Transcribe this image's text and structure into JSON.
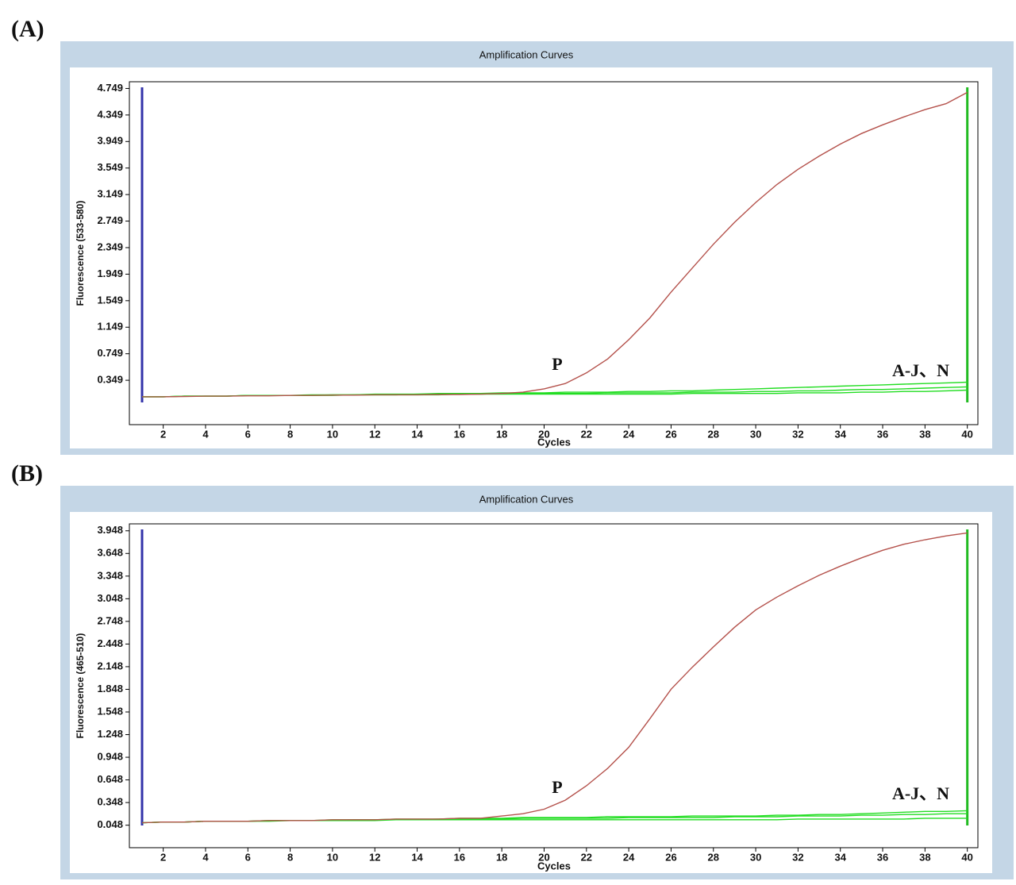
{
  "chart_data": [
    {
      "type": "line",
      "label": "(A)",
      "title": "Amplification Curves",
      "xlabel": "Cycles",
      "ylabel": "Fluorescence (533-580)",
      "x": [
        1,
        2,
        3,
        4,
        5,
        6,
        7,
        8,
        9,
        10,
        11,
        12,
        13,
        14,
        15,
        16,
        17,
        18,
        19,
        20,
        21,
        22,
        23,
        24,
        25,
        26,
        27,
        28,
        29,
        30,
        31,
        32,
        33,
        34,
        35,
        36,
        37,
        38,
        39,
        40
      ],
      "series": [
        {
          "name": "P",
          "color": "#b4514b",
          "values": [
            0.1,
            0.1,
            0.105,
            0.11,
            0.11,
            0.115,
            0.115,
            0.12,
            0.12,
            0.125,
            0.125,
            0.13,
            0.13,
            0.13,
            0.135,
            0.135,
            0.14,
            0.15,
            0.17,
            0.22,
            0.3,
            0.46,
            0.67,
            0.96,
            1.29,
            1.68,
            2.04,
            2.4,
            2.73,
            3.03,
            3.3,
            3.53,
            3.73,
            3.91,
            4.07,
            4.2,
            4.32,
            4.43,
            4.52,
            4.69
          ]
        },
        {
          "name": "A-J、N",
          "color": "#22dd22",
          "values": [
            0.1,
            0.1,
            0.11,
            0.11,
            0.11,
            0.12,
            0.12,
            0.12,
            0.13,
            0.13,
            0.13,
            0.14,
            0.14,
            0.14,
            0.15,
            0.15,
            0.15,
            0.16,
            0.16,
            0.16,
            0.17,
            0.17,
            0.17,
            0.18,
            0.18,
            0.19,
            0.19,
            0.2,
            0.21,
            0.22,
            0.23,
            0.24,
            0.25,
            0.26,
            0.27,
            0.28,
            0.29,
            0.3,
            0.31,
            0.32
          ]
        },
        {
          "color": "#22dd22",
          "values": [
            0.1,
            0.1,
            0.11,
            0.11,
            0.11,
            0.12,
            0.12,
            0.12,
            0.12,
            0.13,
            0.13,
            0.13,
            0.13,
            0.14,
            0.14,
            0.14,
            0.14,
            0.15,
            0.15,
            0.15,
            0.15,
            0.15,
            0.16,
            0.16,
            0.16,
            0.16,
            0.17,
            0.17,
            0.17,
            0.18,
            0.18,
            0.19,
            0.19,
            0.2,
            0.21,
            0.21,
            0.22,
            0.23,
            0.24,
            0.25
          ]
        },
        {
          "color": "#22dd22",
          "values": [
            0.1,
            0.1,
            0.11,
            0.11,
            0.11,
            0.12,
            0.12,
            0.12,
            0.12,
            0.12,
            0.13,
            0.13,
            0.13,
            0.13,
            0.13,
            0.14,
            0.14,
            0.14,
            0.14,
            0.14,
            0.14,
            0.14,
            0.14,
            0.14,
            0.14,
            0.14,
            0.15,
            0.15,
            0.15,
            0.15,
            0.15,
            0.16,
            0.16,
            0.16,
            0.17,
            0.17,
            0.18,
            0.18,
            0.19,
            0.2
          ]
        }
      ],
      "xlim": [
        0.4,
        40.5
      ],
      "xticks": [
        2,
        4,
        6,
        8,
        10,
        12,
        14,
        16,
        18,
        20,
        22,
        24,
        26,
        28,
        30,
        32,
        34,
        36,
        38,
        40
      ],
      "ylim": [
        -0.32,
        4.85
      ],
      "yticks": [
        0.349,
        0.749,
        1.149,
        1.549,
        1.949,
        2.349,
        2.749,
        3.149,
        3.549,
        3.949,
        4.349,
        4.749
      ]
    },
    {
      "type": "line",
      "label": "(B)",
      "title": "Amplification Curves",
      "xlabel": "Cycles",
      "ylabel": "Fluorescence (465-510)",
      "x": [
        1,
        2,
        3,
        4,
        5,
        6,
        7,
        8,
        9,
        10,
        11,
        12,
        13,
        14,
        15,
        16,
        17,
        18,
        19,
        20,
        21,
        22,
        23,
        24,
        25,
        26,
        27,
        28,
        29,
        30,
        31,
        32,
        33,
        34,
        35,
        36,
        37,
        38,
        39,
        40
      ],
      "series": [
        {
          "name": "P",
          "color": "#b4514b",
          "values": [
            0.08,
            0.09,
            0.09,
            0.1,
            0.1,
            0.1,
            0.11,
            0.11,
            0.11,
            0.12,
            0.12,
            0.12,
            0.13,
            0.13,
            0.13,
            0.14,
            0.14,
            0.17,
            0.2,
            0.26,
            0.38,
            0.57,
            0.8,
            1.08,
            1.46,
            1.85,
            2.14,
            2.41,
            2.67,
            2.9,
            3.07,
            3.22,
            3.36,
            3.48,
            3.59,
            3.69,
            3.77,
            3.83,
            3.88,
            3.92
          ]
        },
        {
          "name": "A-J、N",
          "color": "#22dd22",
          "values": [
            0.08,
            0.09,
            0.09,
            0.1,
            0.1,
            0.1,
            0.11,
            0.11,
            0.11,
            0.12,
            0.12,
            0.12,
            0.13,
            0.13,
            0.13,
            0.14,
            0.14,
            0.14,
            0.15,
            0.15,
            0.15,
            0.15,
            0.16,
            0.16,
            0.16,
            0.16,
            0.17,
            0.17,
            0.17,
            0.17,
            0.18,
            0.18,
            0.19,
            0.19,
            0.2,
            0.21,
            0.22,
            0.23,
            0.23,
            0.24
          ]
        },
        {
          "color": "#22dd22",
          "values": [
            0.08,
            0.09,
            0.09,
            0.1,
            0.1,
            0.1,
            0.11,
            0.11,
            0.11,
            0.11,
            0.12,
            0.12,
            0.12,
            0.12,
            0.13,
            0.13,
            0.13,
            0.13,
            0.14,
            0.14,
            0.14,
            0.14,
            0.14,
            0.15,
            0.15,
            0.15,
            0.15,
            0.15,
            0.16,
            0.16,
            0.16,
            0.17,
            0.17,
            0.17,
            0.18,
            0.18,
            0.19,
            0.19,
            0.2,
            0.2
          ]
        },
        {
          "color": "#22dd22",
          "values": [
            0.08,
            0.09,
            0.09,
            0.1,
            0.1,
            0.1,
            0.1,
            0.11,
            0.11,
            0.11,
            0.11,
            0.11,
            0.12,
            0.12,
            0.12,
            0.12,
            0.12,
            0.12,
            0.12,
            0.12,
            0.12,
            0.12,
            0.12,
            0.12,
            0.12,
            0.12,
            0.12,
            0.12,
            0.12,
            0.12,
            0.12,
            0.13,
            0.13,
            0.13,
            0.13,
            0.13,
            0.13,
            0.14,
            0.14,
            0.14
          ]
        }
      ],
      "xlim": [
        0.4,
        40.5
      ],
      "xticks": [
        2,
        4,
        6,
        8,
        10,
        12,
        14,
        16,
        18,
        20,
        22,
        24,
        26,
        28,
        30,
        32,
        34,
        36,
        38,
        40
      ],
      "ylim": [
        -0.25,
        4.04
      ],
      "yticks": [
        0.048,
        0.348,
        0.648,
        0.948,
        1.248,
        1.548,
        1.848,
        2.148,
        2.448,
        2.748,
        3.048,
        3.348,
        3.648,
        3.948
      ]
    }
  ]
}
